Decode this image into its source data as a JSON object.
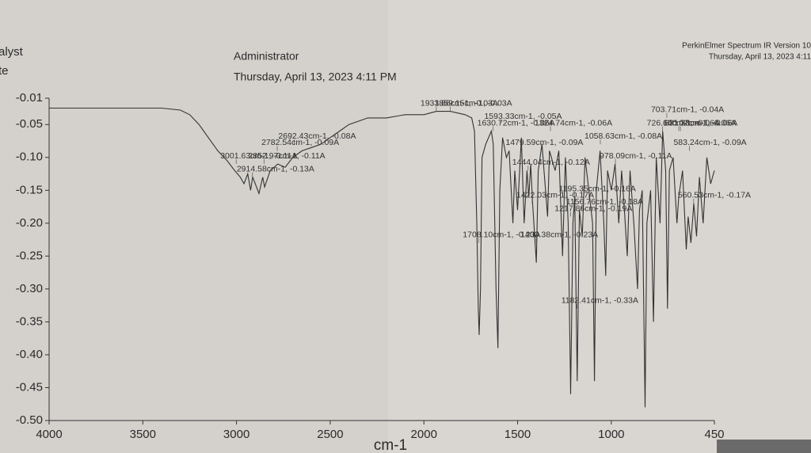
{
  "header": {
    "left_line1": "alyst",
    "left_line2": "te",
    "user": "Administrator",
    "date": "Thursday, April 13, 2023 4:11 PM",
    "software": "PerkinElmer Spectrum IR Version 10",
    "date_right": "Thursday, April 13, 2023 4:11"
  },
  "chart_data": {
    "type": "line",
    "x_label": "cm-1",
    "color": "#333333",
    "xlim": [
      4000,
      450
    ],
    "ylim": [
      -0.5,
      -0.01
    ],
    "xticks": [
      4000,
      3500,
      3000,
      2500,
      2000,
      1500,
      1000,
      450
    ],
    "yticks": [
      -0.01,
      -0.05,
      {
        "value": -0.1,
        "label": "-0.10"
      },
      -0.15,
      {
        "value": -0.2,
        "label": "-0.20"
      },
      -0.25,
      {
        "value": -0.3,
        "label": "-0.30"
      },
      -0.35,
      {
        "value": -0.4,
        "label": "-0.40"
      },
      -0.45,
      {
        "value": -0.5,
        "label": "-0.50"
      }
    ],
    "x": [
      4000,
      3800,
      3600,
      3400,
      3300,
      3250,
      3200,
      3150,
      3100,
      3050,
      3010,
      2980,
      2960,
      2940,
      2925,
      2914,
      2900,
      2880,
      2860,
      2850,
      2820,
      2780,
      2740,
      2700,
      2650,
      2600,
      2550,
      2500,
      2450,
      2400,
      2350,
      2300,
      2200,
      2100,
      2000,
      1933,
      1860,
      1780,
      1745,
      1730,
      1718,
      1710,
      1705,
      1698,
      1690,
      1670,
      1640,
      1630,
      1615,
      1605,
      1595,
      1580,
      1560,
      1545,
      1525,
      1515,
      1500,
      1480,
      1465,
      1450,
      1440,
      1430,
      1420,
      1400,
      1390,
      1370,
      1340,
      1330,
      1300,
      1280,
      1260,
      1245,
      1230,
      1217,
      1205,
      1195,
      1182,
      1170,
      1155,
      1140,
      1120,
      1100,
      1090,
      1080,
      1060,
      1040,
      1030,
      1020,
      1000,
      980,
      960,
      945,
      930,
      915,
      900,
      880,
      860,
      850,
      835,
      820,
      810,
      790,
      775,
      760,
      740,
      726,
      710,
      700,
      690,
      670,
      650,
      640,
      620,
      600,
      590,
      575,
      560,
      545,
      530,
      510,
      490,
      470,
      450
    ],
    "values": [
      -0.025,
      -0.025,
      -0.025,
      -0.025,
      -0.028,
      -0.035,
      -0.05,
      -0.07,
      -0.09,
      -0.105,
      -0.12,
      -0.13,
      -0.14,
      -0.125,
      -0.15,
      -0.13,
      -0.14,
      -0.155,
      -0.13,
      -0.145,
      -0.12,
      -0.11,
      -0.115,
      -0.1,
      -0.09,
      -0.085,
      -0.08,
      -0.07,
      -0.06,
      -0.05,
      -0.045,
      -0.04,
      -0.04,
      -0.035,
      -0.035,
      -0.03,
      -0.03,
      -0.035,
      -0.04,
      -0.06,
      -0.2,
      -0.33,
      -0.37,
      -0.3,
      -0.1,
      -0.08,
      -0.06,
      -0.08,
      -0.3,
      -0.39,
      -0.15,
      -0.07,
      -0.1,
      -0.09,
      -0.2,
      -0.12,
      -0.18,
      -0.07,
      -0.2,
      -0.12,
      -0.16,
      -0.11,
      -0.17,
      -0.26,
      -0.12,
      -0.08,
      -0.19,
      -0.09,
      -0.12,
      -0.09,
      -0.25,
      -0.1,
      -0.2,
      -0.46,
      -0.2,
      -0.16,
      -0.44,
      -0.18,
      -0.22,
      -0.1,
      -0.15,
      -0.2,
      -0.44,
      -0.15,
      -0.09,
      -0.2,
      -0.28,
      -0.12,
      -0.15,
      -0.11,
      -0.2,
      -0.12,
      -0.18,
      -0.25,
      -0.12,
      -0.2,
      -0.3,
      -0.18,
      -0.15,
      -0.48,
      -0.2,
      -0.15,
      -0.35,
      -0.1,
      -0.2,
      -0.06,
      -0.12,
      -0.33,
      -0.12,
      -0.1,
      -0.2,
      -0.16,
      -0.12,
      -0.24,
      -0.19,
      -0.23,
      -0.17,
      -0.22,
      -0.13,
      -0.2,
      -0.1,
      -0.14,
      -0.12
    ],
    "annotations": [
      {
        "label": "3001.63cm-1, -0.11A",
        "x": 3001.63,
        "y": -0.11
      },
      {
        "label": "2692.43cm-1, -0.08A",
        "x": 2692.43,
        "y": -0.08
      },
      {
        "label": "2782.54cm-1, -0.09A",
        "x": 2782.54,
        "y": -0.09
      },
      {
        "label": "2852.97cm-1, -0.11A",
        "x": 2852.97,
        "y": -0.11
      },
      {
        "label": "2914.58cm-1, -0.13A",
        "x": 2914.58,
        "y": -0.13
      },
      {
        "label": "1933.86cm-1, -0.03A",
        "x": 1933.86,
        "y": -0.03
      },
      {
        "label": "1859.15cm-1, -0.03A",
        "x": 1859.15,
        "y": -0.03
      },
      {
        "label": "1630.72cm-1, -0.06A",
        "x": 1630.72,
        "y": -0.06
      },
      {
        "label": "1593.33cm-1, -0.05A",
        "x": 1593.33,
        "y": -0.05
      },
      {
        "label": "1479.59cm-1, -0.09A",
        "x": 1479.59,
        "y": -0.09
      },
      {
        "label": "1324.74cm-1, -0.06A",
        "x": 1324.74,
        "y": -0.06
      },
      {
        "label": "1058.63cm-1, -0.08A",
        "x": 1058.63,
        "y": -0.08
      },
      {
        "label": "978.09cm-1, -0.11A",
        "x": 978.09,
        "y": -0.11
      },
      {
        "label": "1444.04cm-1, -0.12A",
        "x": 1444.04,
        "y": -0.12
      },
      {
        "label": "726.10cm-1, -0.06A",
        "x": 726.1,
        "y": -0.06
      },
      {
        "label": "703.71cm-1, -0.04A",
        "x": 703.71,
        "y": -0.04
      },
      {
        "label": "640.02cm-1, -0.06A",
        "x": 640.02,
        "y": -0.06
      },
      {
        "label": "631.38cm-1, -0.06A",
        "x": 631.38,
        "y": -0.06
      },
      {
        "label": "583.24cm-1, -0.09A",
        "x": 583.24,
        "y": -0.09
      },
      {
        "label": "1422.03cm-1, -0.17A",
        "x": 1422.03,
        "y": -0.17
      },
      {
        "label": "1195.35cm-1, -0.16A",
        "x": 1195.35,
        "y": -0.16
      },
      {
        "label": "1156.76cm-1, -0.18A",
        "x": 1156.76,
        "y": -0.18
      },
      {
        "label": "1217.86cm-1, -0.19A",
        "x": 1217.86,
        "y": -0.19
      },
      {
        "label": "560.53cm-1, -0.17A",
        "x": 560.53,
        "y": -0.17
      },
      {
        "label": "1708.10cm-1, -0.23A",
        "x": 1708.1,
        "y": -0.23
      },
      {
        "label": "1400.38cm-1, -0.23A",
        "x": 1400.38,
        "y": -0.23
      },
      {
        "label": "1182.41cm-1, -0.33A",
        "x": 1182.41,
        "y": -0.33
      }
    ]
  }
}
